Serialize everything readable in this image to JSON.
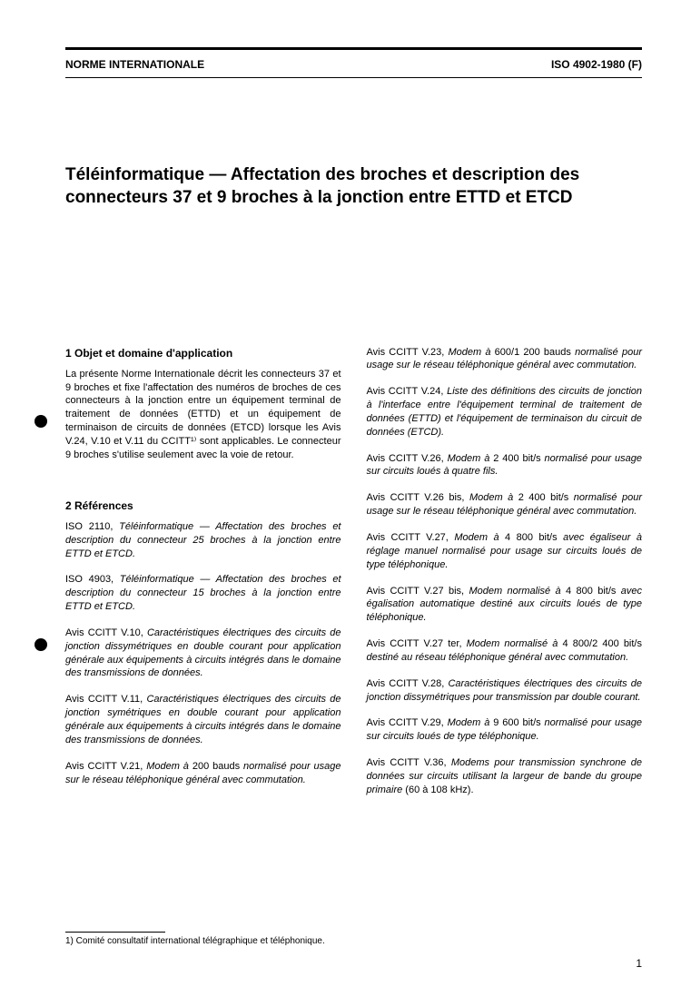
{
  "header": {
    "left": "NORME INTERNATIONALE",
    "right": "ISO 4902-1980 (F)"
  },
  "title": "Téléinformatique — Affectation des broches et description des connecteurs 37 et 9 broches à la jonction entre ETTD et ETCD",
  "section1": {
    "heading": "1   Objet et domaine d'application",
    "body": "La présente Norme Internationale décrit les connecteurs 37 et 9 broches et fixe l'affectation des numéros de broches de ces connecteurs à la jonction entre un équipement terminal de traitement de données (ETTD) et un équipement de terminaison de circuits de données (ETCD) lorsque les Avis V.24, V.10 et V.11 du CCITT¹⁾ sont applicables. Le connecteur 9 broches s'utilise seulement avec la voie de retour."
  },
  "section2": {
    "heading": "2   Références",
    "refs_left": [
      {
        "prefix": "ISO 2110, ",
        "body": "Téléinformatique — Affectation des broches et description du connecteur 25 broches à la jonction entre ETTD et ETCD.",
        "suffix": ""
      },
      {
        "prefix": "ISO 4903, ",
        "body": "Téléinformatique — Affectation des broches et description du connecteur 15 broches à la jonction entre ETTD et ETCD.",
        "suffix": ""
      },
      {
        "prefix": "Avis CCITT V.10, ",
        "body": "Caractéristiques électriques des circuits de jonction dissymétriques en double courant pour application générale aux équipements à circuits intégrés dans le domaine des transmissions de données.",
        "suffix": ""
      },
      {
        "prefix": "Avis CCITT V.11, ",
        "body": "Caractéristiques électriques des circuits de jonction symétriques en double courant pour application générale aux équipements à circuits intégrés dans le domaine des transmissions de données.",
        "suffix": ""
      },
      {
        "prefix": "Avis CCITT V.21, ",
        "body": "Modem à ",
        "suffix": "200 bauds",
        "body2": " normalisé pour usage sur le réseau téléphonique général avec commutation."
      }
    ],
    "refs_right": [
      {
        "prefix": "Avis CCITT V.23, ",
        "body": "Modem à ",
        "suffix": "600/1 200 bauds",
        "body2": " normalisé pour usage sur le réseau téléphonique général avec commutation."
      },
      {
        "prefix": "Avis CCITT V.24, ",
        "body": "Liste des définitions des circuits de jonction à l'interface entre l'équipement terminal de traitement de données (ETTD) et l'équipement de terminaison du circuit de données (ETCD).",
        "suffix": ""
      },
      {
        "prefix": "Avis CCITT V.26, ",
        "body": "Modem à ",
        "suffix": "2 400 bit/s",
        "body2": " normalisé pour usage sur circuits loués à quatre fils."
      },
      {
        "prefix": "Avis CCITT V.26 bis, ",
        "body": "Modem à ",
        "suffix": "2 400 bit/s",
        "body2": " normalisé pour usage sur le réseau téléphonique général avec commutation."
      },
      {
        "prefix": "Avis CCITT V.27, ",
        "body": "Modem à ",
        "suffix": "4 800 bit/s",
        "body2": " avec égaliseur à réglage manuel normalisé pour usage sur circuits loués de type téléphonique."
      },
      {
        "prefix": "Avis CCITT V.27 bis, ",
        "body": "Modem normalisé à ",
        "suffix": "4 800 bit/s",
        "body2": " avec égalisation automatique destiné aux circuits loués de type téléphonique."
      },
      {
        "prefix": "Avis CCITT V.27 ter, ",
        "body": "Modem normalisé à ",
        "suffix": "4 800/2 400 bit/s",
        "body2": " destiné au réseau téléphonique général avec commutation."
      },
      {
        "prefix": "Avis CCITT V.28, ",
        "body": "Caractéristiques électriques des circuits de jonction dissymétriques pour transmission par double courant.",
        "suffix": ""
      },
      {
        "prefix": "Avis CCITT V.29, ",
        "body": "Modem à ",
        "suffix": "9 600 bit/s",
        "body2": " normalisé pour usage sur circuits loués de type téléphonique."
      },
      {
        "prefix": "Avis CCITT V.36, ",
        "body": "Modems pour transmission synchrone de données sur circuits utilisant la largeur de bande du groupe primaire ",
        "suffix": "(60 à 108 kHz)."
      }
    ]
  },
  "footnote": "1)   Comité consultatif international télégraphique et téléphonique.",
  "page_number": "1"
}
